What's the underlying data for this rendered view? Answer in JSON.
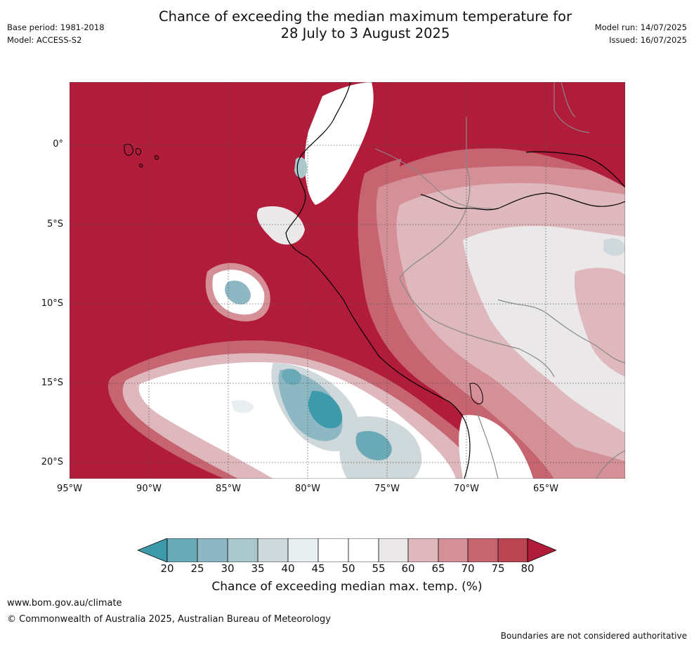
{
  "header": {
    "title_line1": "Chance of exceeding the median maximum temperature for",
    "title_line2": "28 July to 3 August 2025",
    "base_period": "Base period: 1981-2018",
    "model": "Model: ACCESS-S2",
    "model_run": "Model run: 14/07/2025",
    "issued": "Issued: 16/07/2025"
  },
  "map": {
    "lat_labels": [
      "0°",
      "5°S",
      "10°S",
      "15°S",
      "20°S"
    ],
    "lon_labels": [
      "95°W",
      "90°W",
      "85°W",
      "80°W",
      "75°W",
      "70°W",
      "65°W"
    ],
    "colors": {
      "c20": "#3c9aaa",
      "c25": "#6aaab7",
      "c30": "#8db8c3",
      "c35": "#aac8cc",
      "c40": "#cfd8db",
      "c45": "#e9eef1",
      "c50": "#ffffff",
      "c55": "#ffffff",
      "c60": "#ebe8ea",
      "c65": "#dfb8bd",
      "c70": "#d48f97",
      "c75": "#c66570",
      "c80": "#bb4653",
      "c85": "#b01c3a"
    }
  },
  "colorbar": {
    "ticks": [
      "20",
      "25",
      "30",
      "35",
      "40",
      "45",
      "50",
      "55",
      "60",
      "65",
      "70",
      "75",
      "80"
    ],
    "label": "Chance of exceeding median max. temp. (%)"
  },
  "footer": {
    "url": "www.bom.gov.au/climate",
    "copyright": "© Commonwealth of Australia 2025, Australian Bureau of Meteorology",
    "disclaimer": "Boundaries are not considered authoritative"
  }
}
